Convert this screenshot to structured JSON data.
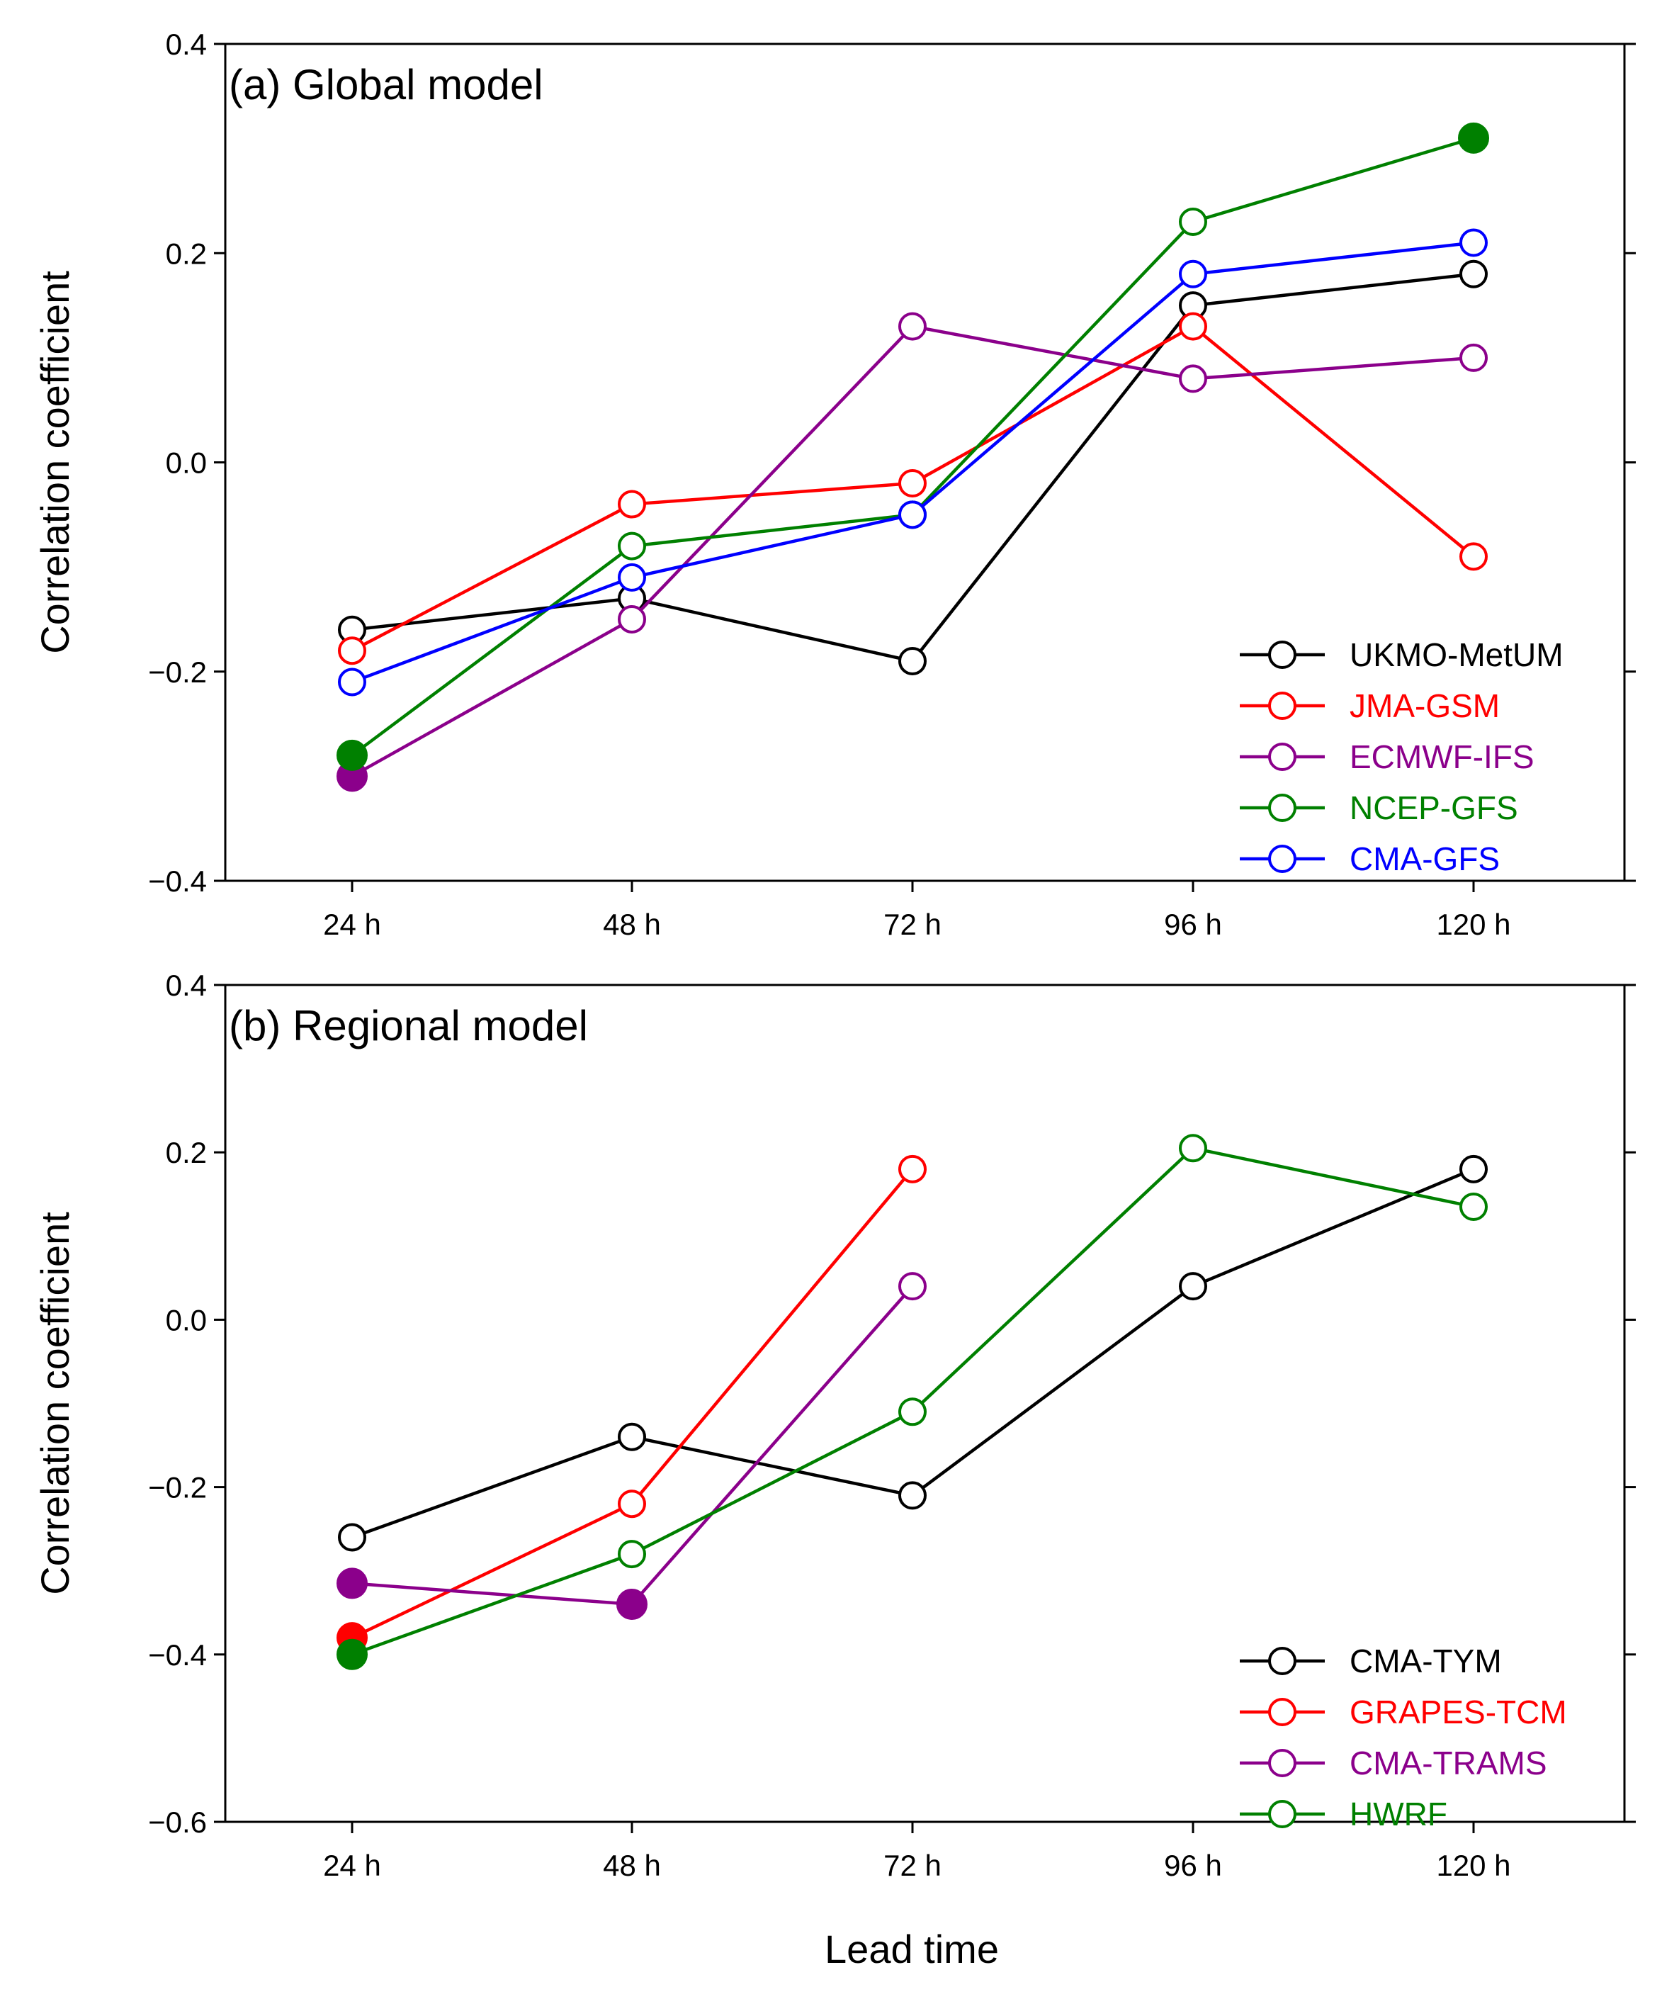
{
  "figure": {
    "xlabel": "Lead time"
  },
  "chart_data": [
    {
      "type": "line",
      "title": "(a) Global model",
      "xlabel": "",
      "ylabel": "Correlation coefficient",
      "categories": [
        "24 h",
        "48 h",
        "72 h",
        "96 h",
        "120 h"
      ],
      "ylim": [
        -0.4,
        0.4
      ],
      "yticks": [
        -0.4,
        -0.2,
        0.0,
        0.2,
        0.4
      ],
      "ytick_labels": [
        "−0.4",
        "−0.2",
        "0.0",
        "0.2",
        "0.4"
      ],
      "legend_position": "bottom-right",
      "series": [
        {
          "name": "UKMO-MetUM",
          "color": "#000000",
          "values": [
            -0.16,
            -0.13,
            -0.19,
            0.15,
            0.18
          ],
          "filled": [
            false,
            false,
            false,
            false,
            false
          ]
        },
        {
          "name": "JMA-GSM",
          "color": "#ff0000",
          "values": [
            -0.18,
            -0.04,
            -0.02,
            0.13,
            -0.09
          ],
          "filled": [
            false,
            false,
            false,
            false,
            false
          ]
        },
        {
          "name": "ECMWF-IFS",
          "color": "#8b008b",
          "values": [
            -0.3,
            -0.15,
            0.13,
            0.08,
            0.1
          ],
          "filled": [
            true,
            false,
            false,
            false,
            false
          ]
        },
        {
          "name": "NCEP-GFS",
          "color": "#008000",
          "values": [
            -0.28,
            -0.08,
            -0.05,
            0.23,
            0.31
          ],
          "filled": [
            true,
            false,
            false,
            false,
            true
          ]
        },
        {
          "name": "CMA-GFS",
          "color": "#0000ff",
          "values": [
            -0.21,
            -0.11,
            -0.05,
            0.18,
            0.21
          ],
          "filled": [
            false,
            false,
            false,
            false,
            false
          ]
        }
      ]
    },
    {
      "type": "line",
      "title": "(b) Regional model",
      "xlabel": "",
      "ylabel": "Correlation coefficient",
      "categories": [
        "24 h",
        "48 h",
        "72 h",
        "96 h",
        "120 h"
      ],
      "ylim": [
        -0.6,
        0.4
      ],
      "yticks": [
        -0.6,
        -0.4,
        -0.2,
        0.0,
        0.2,
        0.4
      ],
      "ytick_labels": [
        "−0.6",
        "−0.4",
        "−0.2",
        "0.0",
        "0.2",
        "0.4"
      ],
      "legend_position": "bottom-right",
      "series": [
        {
          "name": "CMA-TYM",
          "color": "#000000",
          "values": [
            -0.26,
            -0.14,
            -0.21,
            0.04,
            0.18
          ],
          "filled": [
            false,
            false,
            false,
            false,
            false
          ]
        },
        {
          "name": "GRAPES-TCM",
          "color": "#ff0000",
          "values": [
            -0.38,
            -0.22,
            0.18,
            null,
            null
          ],
          "filled": [
            true,
            false,
            false,
            false,
            false
          ]
        },
        {
          "name": "CMA-TRAMS",
          "color": "#8b008b",
          "values": [
            -0.315,
            -0.34,
            0.04,
            null,
            null
          ],
          "filled": [
            true,
            true,
            false,
            false,
            false
          ]
        },
        {
          "name": "HWRF",
          "color": "#008000",
          "values": [
            -0.4,
            -0.28,
            -0.11,
            0.205,
            0.135
          ],
          "filled": [
            true,
            false,
            false,
            false,
            false
          ]
        }
      ]
    }
  ]
}
